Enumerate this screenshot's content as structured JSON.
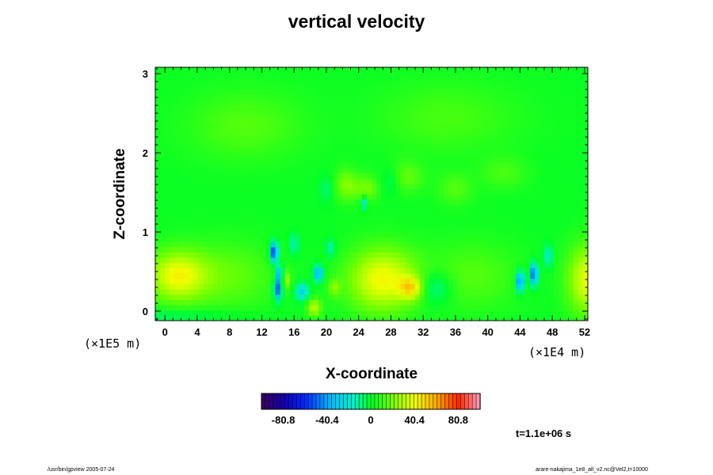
{
  "chart_data": {
    "type": "heatmap",
    "title": "vertical velocity",
    "xlabel": "X-coordinate",
    "ylabel": "Z-coordinate",
    "x_ticks": [
      "0",
      "4",
      "8",
      "12",
      "16",
      "20",
      "24",
      "28",
      "32",
      "36",
      "40",
      "44",
      "48",
      "52"
    ],
    "x_tick_values": [
      0,
      4,
      8,
      12,
      16,
      20,
      24,
      28,
      32,
      36,
      40,
      44,
      48,
      52
    ],
    "y_ticks": [
      "0",
      "1",
      "2",
      "3"
    ],
    "y_tick_values": [
      0,
      1,
      2,
      3
    ],
    "xlim": [
      -1.2,
      52.4
    ],
    "ylim": [
      -0.12,
      3.08
    ],
    "x_scale_label": "(×1E4 m)",
    "y_scale_label": "(×1E5 m)",
    "colorbar": {
      "ticks": [
        "-80.8",
        "-40.4",
        "0",
        "40.4",
        "80.8"
      ],
      "tick_values": [
        -80.8,
        -40.4,
        0,
        40.4,
        80.8
      ],
      "range": [
        -101,
        101
      ]
    },
    "background_value": 2,
    "features": [
      {
        "x": 1.5,
        "z": 0.45,
        "value": 38,
        "sx": 2.6,
        "sz": 0.22
      },
      {
        "x": 27.0,
        "z": 0.4,
        "value": 40,
        "sx": 3.0,
        "sz": 0.28
      },
      {
        "x": 30.5,
        "z": 0.3,
        "value": 34,
        "sx": 1.0,
        "sz": 0.1
      },
      {
        "x": 52.5,
        "z": 0.4,
        "value": 38,
        "sx": 1.8,
        "sz": 0.3
      },
      {
        "x": 8.0,
        "z": 0.45,
        "value": 14,
        "sx": 4.0,
        "sz": 0.3
      },
      {
        "x": 38.0,
        "z": 0.45,
        "value": 12,
        "sx": 4.0,
        "sz": 0.3
      },
      {
        "x": 13.5,
        "z": 0.75,
        "value": -62,
        "sx": 0.35,
        "sz": 0.09
      },
      {
        "x": 14.0,
        "z": 0.28,
        "value": -55,
        "sx": 0.35,
        "sz": 0.1
      },
      {
        "x": 14.2,
        "z": 0.48,
        "value": -40,
        "sx": 0.3,
        "sz": 0.08
      },
      {
        "x": 19.0,
        "z": 0.48,
        "value": -45,
        "sx": 0.4,
        "sz": 0.07
      },
      {
        "x": 17.0,
        "z": 0.25,
        "value": -30,
        "sx": 0.6,
        "sz": 0.08
      },
      {
        "x": 16.0,
        "z": 0.85,
        "value": -18,
        "sx": 0.4,
        "sz": 0.1
      },
      {
        "x": 20.5,
        "z": 0.8,
        "value": -18,
        "sx": 0.4,
        "sz": 0.08
      },
      {
        "x": 24.7,
        "z": 1.38,
        "value": -28,
        "sx": 0.3,
        "sz": 0.06
      },
      {
        "x": 44.0,
        "z": 0.38,
        "value": -55,
        "sx": 0.35,
        "sz": 0.09
      },
      {
        "x": 45.7,
        "z": 0.47,
        "value": -55,
        "sx": 0.35,
        "sz": 0.1
      },
      {
        "x": 47.5,
        "z": 0.7,
        "value": -22,
        "sx": 0.4,
        "sz": 0.1
      },
      {
        "x": 33.5,
        "z": 0.3,
        "value": -18,
        "sx": 1.5,
        "sz": 0.15
      },
      {
        "x": 1.0,
        "z": -0.05,
        "value": -10,
        "sx": 6.0,
        "sz": 0.06
      },
      {
        "x": 18.5,
        "z": 0.05,
        "value": 30,
        "sx": 0.6,
        "sz": 0.08
      },
      {
        "x": 15.0,
        "z": 0.4,
        "value": 22,
        "sx": 0.4,
        "sz": 0.08
      },
      {
        "x": 21.0,
        "z": 0.3,
        "value": 18,
        "sx": 0.5,
        "sz": 0.08
      },
      {
        "x": 22.5,
        "z": 1.6,
        "value": 20,
        "sx": 1.0,
        "sz": 0.14
      },
      {
        "x": 25.0,
        "z": 1.55,
        "value": 18,
        "sx": 1.0,
        "sz": 0.12
      },
      {
        "x": 30.0,
        "z": 1.7,
        "value": 14,
        "sx": 1.5,
        "sz": 0.14
      },
      {
        "x": 36.0,
        "z": 1.55,
        "value": 12,
        "sx": 1.5,
        "sz": 0.14
      },
      {
        "x": 42.0,
        "z": 1.75,
        "value": 10,
        "sx": 2.0,
        "sz": 0.14
      },
      {
        "x": 10.0,
        "z": 2.35,
        "value": 12,
        "sx": 5.0,
        "sz": 0.3
      },
      {
        "x": 35.0,
        "z": 2.45,
        "value": 10,
        "sx": 6.0,
        "sz": 0.3
      },
      {
        "x": 20.0,
        "z": 1.55,
        "value": -10,
        "sx": 0.6,
        "sz": 0.12
      },
      {
        "x": 28.0,
        "z": 1.65,
        "value": -10,
        "sx": 0.8,
        "sz": 0.12
      }
    ],
    "grid": false,
    "legend": "bottom-center"
  },
  "timestamp": "t=1.1e+06 s",
  "footer_left": "/usr/bin/gpview 2005-07-24",
  "footer_right": "arare-nakajima_1e8_all_v2.nc@Vel2,t=10000"
}
